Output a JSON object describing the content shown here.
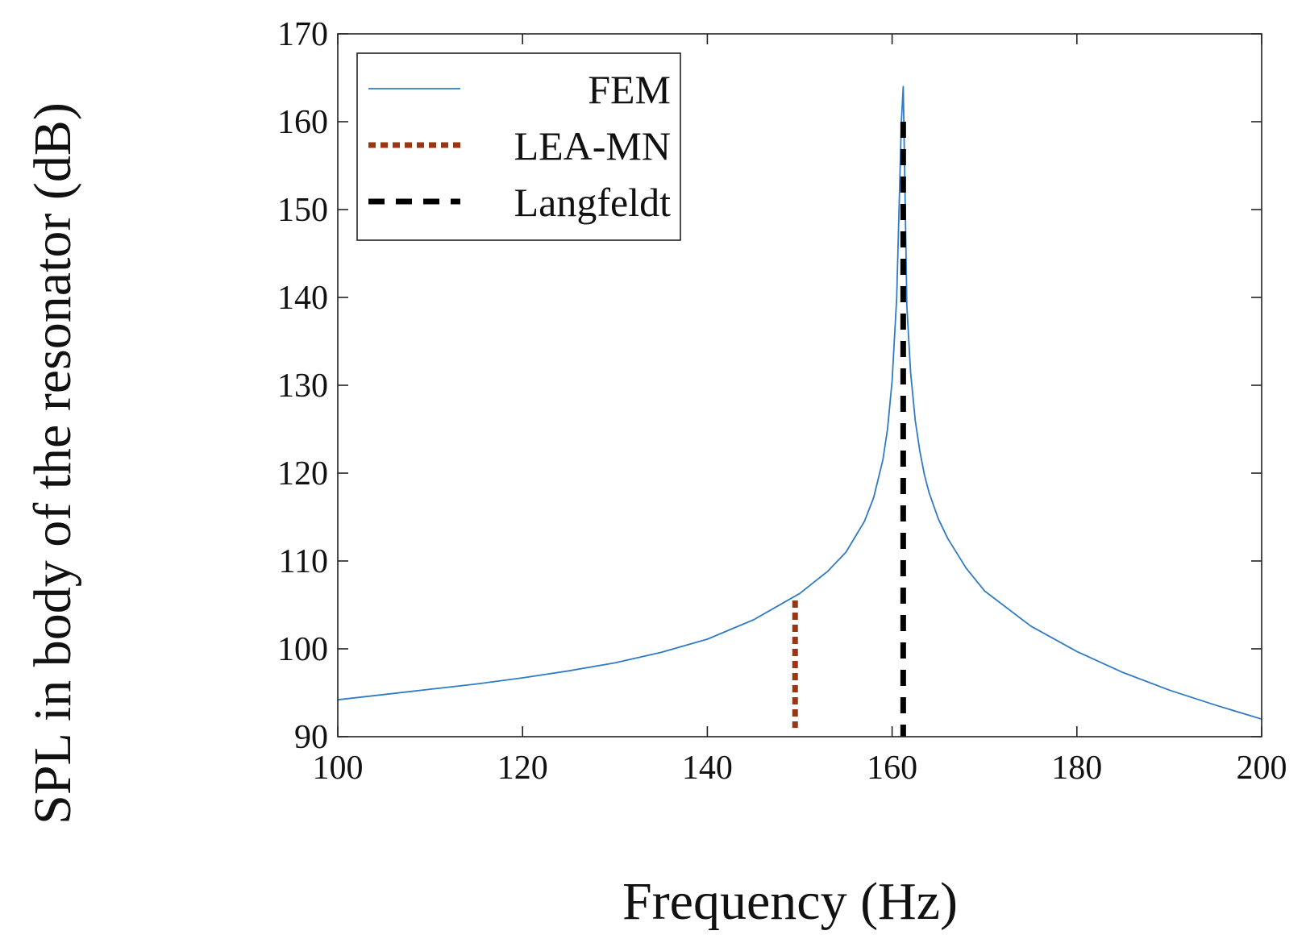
{
  "chart_data": {
    "type": "line",
    "title": "",
    "xlabel": "Frequency (Hz)",
    "ylabel": "SPL in body of the resonator (dB)",
    "xlim": [
      100,
      200
    ],
    "ylim": [
      90,
      170
    ],
    "xticks": [
      100,
      120,
      140,
      160,
      180,
      200
    ],
    "yticks": [
      90,
      100,
      110,
      120,
      130,
      140,
      150,
      160,
      170
    ],
    "xtick_labels": [
      "100",
      "120",
      "140",
      "160",
      "180",
      "200"
    ],
    "ytick_labels": [
      "90",
      "100",
      "110",
      "120",
      "130",
      "140",
      "150",
      "160",
      "170"
    ],
    "grid": false,
    "legend_position": "top-left",
    "series": [
      {
        "name": "FEM",
        "kind": "line",
        "color": "#2f7bc4",
        "style": "solid",
        "x": [
          100,
          105,
          110,
          115,
          120,
          125,
          130,
          135,
          140,
          145,
          150,
          153,
          155,
          157,
          158,
          159,
          159.5,
          160,
          160.5,
          161,
          161.2,
          161.4,
          161.6,
          162,
          162.5,
          163,
          163.5,
          164,
          165,
          166,
          168,
          170,
          175,
          180,
          185,
          190,
          195,
          200
        ],
        "y": [
          94.2,
          94.8,
          95.4,
          96.0,
          96.7,
          97.5,
          98.4,
          99.6,
          101.1,
          103.3,
          106.3,
          108.8,
          111.0,
          114.5,
          117.2,
          121.5,
          125.0,
          130.5,
          140.0,
          160.0,
          164.0,
          152.0,
          139.0,
          131.5,
          126.0,
          122.5,
          119.8,
          117.8,
          114.8,
          112.6,
          109.2,
          106.6,
          102.6,
          99.7,
          97.3,
          95.3,
          93.6,
          92.0
        ]
      },
      {
        "name": "LEA-MN",
        "kind": "vline",
        "color": "#9c3512",
        "style": "dotted",
        "x": 149.5,
        "y_range": [
          91,
          105.5
        ]
      },
      {
        "name": "Langfeldt",
        "kind": "vline",
        "color": "#000000",
        "style": "dashed",
        "x": 161.2,
        "y_range": [
          90,
          160
        ]
      }
    ]
  }
}
